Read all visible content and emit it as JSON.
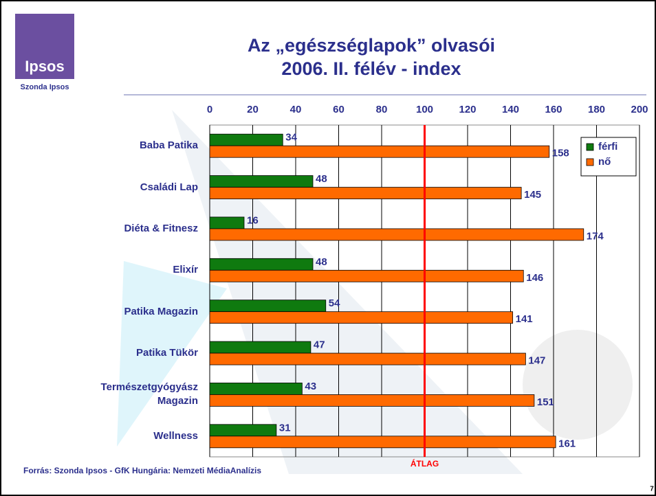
{
  "logo": {
    "text": "Ipsos",
    "caption": "Szonda Ipsos"
  },
  "chart_data": {
    "type": "bar",
    "orientation": "horizontal",
    "title": [
      "Az „egészséglapok” olvasói",
      "2006. II. félév - index"
    ],
    "categories": [
      "Baba Patika",
      "Családi Lap",
      "Diéta & Fitnesz",
      "Elixír",
      "Patika Magazin",
      "Patika Tükör",
      "Természetgyógyász Magazin",
      "Wellness"
    ],
    "series": [
      {
        "name": "férfi",
        "color": "#0f7a0f",
        "values": [
          34,
          48,
          16,
          48,
          54,
          47,
          43,
          31
        ]
      },
      {
        "name": "nő",
        "color": "#ff6a00",
        "values": [
          158,
          145,
          174,
          146,
          141,
          147,
          151,
          161
        ]
      }
    ],
    "xlim": [
      0,
      200
    ],
    "xticks": [
      0,
      20,
      40,
      60,
      80,
      100,
      120,
      140,
      160,
      180,
      200
    ],
    "grid": true,
    "legend": "top-right",
    "reference_line": {
      "value": 100,
      "label": "ÁTLAG",
      "color": "#ff0000"
    }
  },
  "source": "Forrás: Szonda Ipsos - GfK Hungária: Nemzeti MédiaAnalízis",
  "page_number": "7"
}
